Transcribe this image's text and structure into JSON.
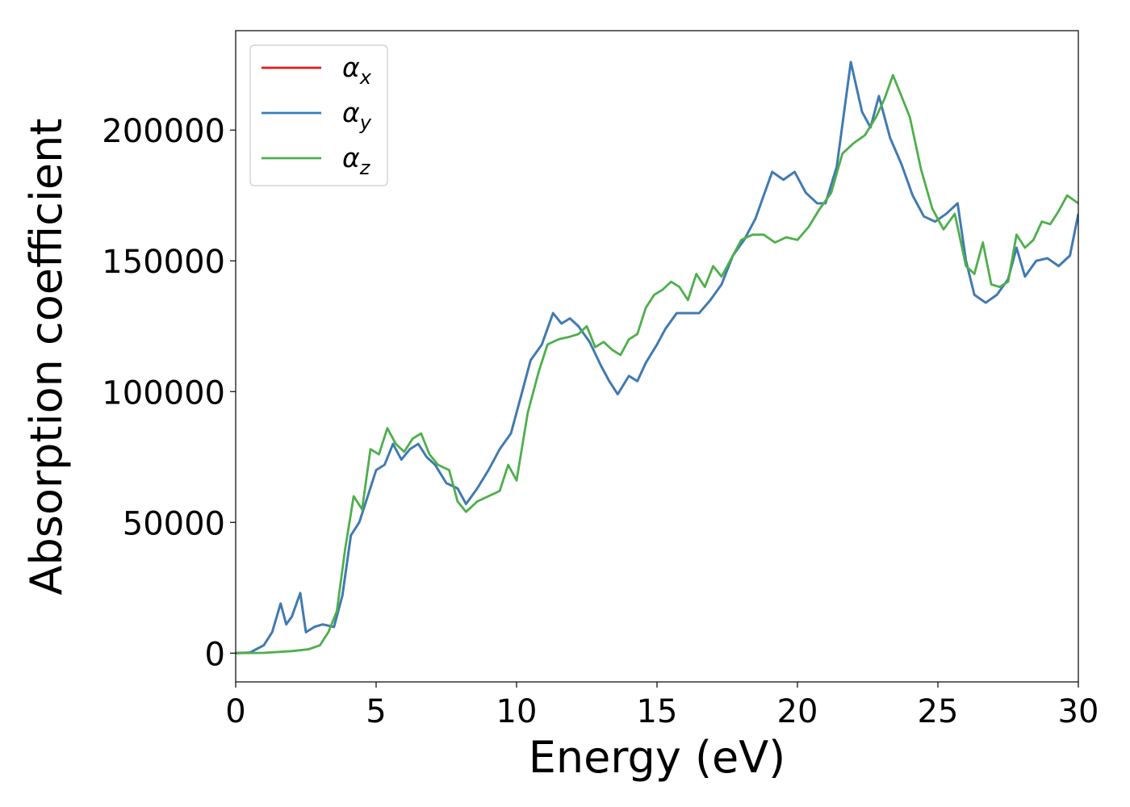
{
  "chart_data": {
    "type": "line",
    "title": "",
    "xlabel": "Energy (eV)",
    "ylabel": "Absorption coefficient",
    "xlim": [
      0,
      30
    ],
    "ylim": [
      -11000,
      238000
    ],
    "xticks": [
      0,
      5,
      10,
      15,
      20,
      25,
      30
    ],
    "xtick_labels": [
      "0",
      "5",
      "10",
      "15",
      "20",
      "25",
      "30"
    ],
    "yticks": [
      0,
      50000,
      100000,
      150000,
      200000
    ],
    "ytick_labels": [
      "0",
      "50000",
      "100000",
      "150000",
      "200000"
    ],
    "grid": false,
    "legend_position": "top-left",
    "colors": {
      "alpha_x": "#e41a1c",
      "alpha_y": "#377eb8",
      "alpha_z": "#4daf4a"
    },
    "series": [
      {
        "name": "α",
        "subscript": "x",
        "color": "#e41a1c",
        "x": [
          0,
          0.5,
          1.0,
          1.3,
          1.6,
          1.8,
          2.0,
          2.3,
          2.5,
          2.8,
          3.1,
          3.5,
          3.8,
          4.1,
          4.4,
          4.7,
          5.0,
          5.3,
          5.6,
          5.9,
          6.2,
          6.5,
          6.8,
          7.1,
          7.5,
          7.9,
          8.2,
          8.6,
          9.0,
          9.4,
          9.8,
          10.1,
          10.5,
          10.9,
          11.3,
          11.6,
          11.9,
          12.2,
          12.6,
          13.0,
          13.3,
          13.6,
          14.0,
          14.3,
          14.6,
          15.0,
          15.3,
          15.7,
          16.1,
          16.5,
          16.9,
          17.3,
          17.7,
          18.1,
          18.5,
          18.8,
          19.1,
          19.5,
          19.9,
          20.3,
          20.7,
          21.0,
          21.4,
          21.9,
          22.3,
          22.6,
          22.9,
          23.3,
          23.7,
          24.1,
          24.5,
          24.9,
          25.3,
          25.7,
          26.0,
          26.3,
          26.7,
          27.1,
          27.5,
          27.8,
          28.1,
          28.5,
          28.9,
          29.3,
          29.7,
          30.0
        ],
        "y": [
          0,
          200,
          3000,
          8000,
          19000,
          11000,
          14000,
          23000,
          8000,
          10000,
          11000,
          10000,
          22000,
          45000,
          50000,
          60000,
          70000,
          72000,
          80000,
          74000,
          78000,
          80000,
          75000,
          72000,
          65000,
          63000,
          57000,
          63000,
          70000,
          78000,
          84000,
          96000,
          112000,
          118000,
          130000,
          126000,
          128000,
          125000,
          119000,
          110000,
          104000,
          99000,
          106000,
          104000,
          111000,
          118000,
          124000,
          130000,
          130000,
          130000,
          135000,
          141000,
          152000,
          158000,
          166000,
          175000,
          184000,
          181000,
          184000,
          176000,
          172000,
          172000,
          186000,
          226000,
          207000,
          201000,
          213000,
          197000,
          187000,
          175000,
          167000,
          165000,
          168000,
          172000,
          150000,
          137000,
          134000,
          137000,
          143000,
          155000,
          144000,
          150000,
          151000,
          148000,
          152000,
          168000
        ]
      },
      {
        "name": "α",
        "subscript": "y",
        "color": "#377eb8",
        "x": [
          0,
          0.5,
          1.0,
          1.3,
          1.6,
          1.8,
          2.0,
          2.3,
          2.5,
          2.8,
          3.1,
          3.5,
          3.8,
          4.1,
          4.4,
          4.7,
          5.0,
          5.3,
          5.6,
          5.9,
          6.2,
          6.5,
          6.8,
          7.1,
          7.5,
          7.9,
          8.2,
          8.6,
          9.0,
          9.4,
          9.8,
          10.1,
          10.5,
          10.9,
          11.3,
          11.6,
          11.9,
          12.2,
          12.6,
          13.0,
          13.3,
          13.6,
          14.0,
          14.3,
          14.6,
          15.0,
          15.3,
          15.7,
          16.1,
          16.5,
          16.9,
          17.3,
          17.7,
          18.1,
          18.5,
          18.8,
          19.1,
          19.5,
          19.9,
          20.3,
          20.7,
          21.0,
          21.4,
          21.9,
          22.3,
          22.6,
          22.9,
          23.3,
          23.7,
          24.1,
          24.5,
          24.9,
          25.3,
          25.7,
          26.0,
          26.3,
          26.7,
          27.1,
          27.5,
          27.8,
          28.1,
          28.5,
          28.9,
          29.3,
          29.7,
          30.0
        ],
        "y": [
          0,
          200,
          3000,
          8000,
          19000,
          11000,
          14000,
          23000,
          8000,
          10000,
          11000,
          10000,
          22000,
          45000,
          50000,
          60000,
          70000,
          72000,
          80000,
          74000,
          78000,
          80000,
          75000,
          72000,
          65000,
          63000,
          57000,
          63000,
          70000,
          78000,
          84000,
          96000,
          112000,
          118000,
          130000,
          126000,
          128000,
          125000,
          119000,
          110000,
          104000,
          99000,
          106000,
          104000,
          111000,
          118000,
          124000,
          130000,
          130000,
          130000,
          135000,
          141000,
          152000,
          158000,
          166000,
          175000,
          184000,
          181000,
          184000,
          176000,
          172000,
          172000,
          186000,
          226000,
          207000,
          201000,
          213000,
          197000,
          187000,
          175000,
          167000,
          165000,
          168000,
          172000,
          150000,
          137000,
          134000,
          137000,
          143000,
          155000,
          144000,
          150000,
          151000,
          148000,
          152000,
          168000
        ]
      },
      {
        "name": "α",
        "subscript": "z",
        "color": "#4daf4a",
        "x": [
          0,
          1.0,
          2.0,
          2.6,
          3.0,
          3.3,
          3.6,
          3.9,
          4.2,
          4.5,
          4.8,
          5.1,
          5.4,
          5.7,
          6.0,
          6.3,
          6.6,
          6.9,
          7.2,
          7.6,
          7.9,
          8.2,
          8.6,
          9.0,
          9.4,
          9.7,
          10.0,
          10.4,
          10.8,
          11.1,
          11.5,
          11.9,
          12.2,
          12.5,
          12.8,
          13.1,
          13.4,
          13.7,
          14.0,
          14.3,
          14.6,
          14.9,
          15.2,
          15.5,
          15.8,
          16.1,
          16.4,
          16.7,
          17.0,
          17.3,
          17.6,
          18.0,
          18.4,
          18.8,
          19.2,
          19.6,
          20.0,
          20.4,
          20.8,
          21.2,
          21.6,
          22.0,
          22.4,
          22.8,
          23.1,
          23.4,
          23.7,
          24.0,
          24.4,
          24.8,
          25.2,
          25.6,
          26.0,
          26.3,
          26.6,
          26.9,
          27.2,
          27.5,
          27.8,
          28.1,
          28.4,
          28.7,
          29.0,
          29.3,
          29.6,
          30.0
        ],
        "y": [
          0,
          100,
          800,
          1500,
          3000,
          8000,
          16000,
          40000,
          60000,
          55000,
          78000,
          76000,
          86000,
          80000,
          77000,
          82000,
          84000,
          76000,
          72000,
          70000,
          58000,
          54000,
          58000,
          60000,
          62000,
          72000,
          66000,
          92000,
          108000,
          118000,
          120000,
          121000,
          122000,
          125000,
          117000,
          119000,
          116000,
          114000,
          120000,
          122000,
          132000,
          137000,
          139000,
          142000,
          140000,
          135000,
          145000,
          140000,
          148000,
          144000,
          150000,
          158000,
          160000,
          160000,
          157000,
          159000,
          158000,
          163000,
          170000,
          176000,
          191000,
          195000,
          198000,
          205000,
          212000,
          221000,
          213000,
          205000,
          185000,
          170000,
          162000,
          168000,
          148000,
          145000,
          157000,
          141000,
          140000,
          142000,
          160000,
          155000,
          158000,
          165000,
          164000,
          169000,
          175000,
          172000
        ]
      }
    ]
  }
}
